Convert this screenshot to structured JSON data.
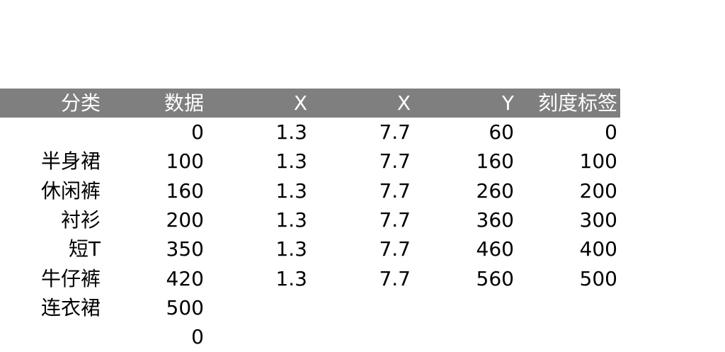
{
  "table": {
    "headers": [
      "分类",
      "数据",
      "X",
      "X",
      "Y",
      "刻度标签"
    ],
    "rows": [
      [
        "",
        "0",
        "1.3",
        "7.7",
        "60",
        "0"
      ],
      [
        "半身裙",
        "100",
        "1.3",
        "7.7",
        "160",
        "100"
      ],
      [
        "休闲裤",
        "160",
        "1.3",
        "7.7",
        "260",
        "200"
      ],
      [
        "衬衫",
        "200",
        "1.3",
        "7.7",
        "360",
        "300"
      ],
      [
        "短T",
        "350",
        "1.3",
        "7.7",
        "460",
        "400"
      ],
      [
        "牛仔裤",
        "420",
        "1.3",
        "7.7",
        "560",
        "500"
      ],
      [
        "连衣裙",
        "500",
        "",
        "",
        "",
        ""
      ],
      [
        "",
        "0",
        "",
        "",
        "",
        ""
      ]
    ]
  },
  "colors": {
    "header_bg": "#7f7f7f",
    "header_text": "#ffffff",
    "cell_text": "#000000",
    "background": "#ffffff"
  }
}
